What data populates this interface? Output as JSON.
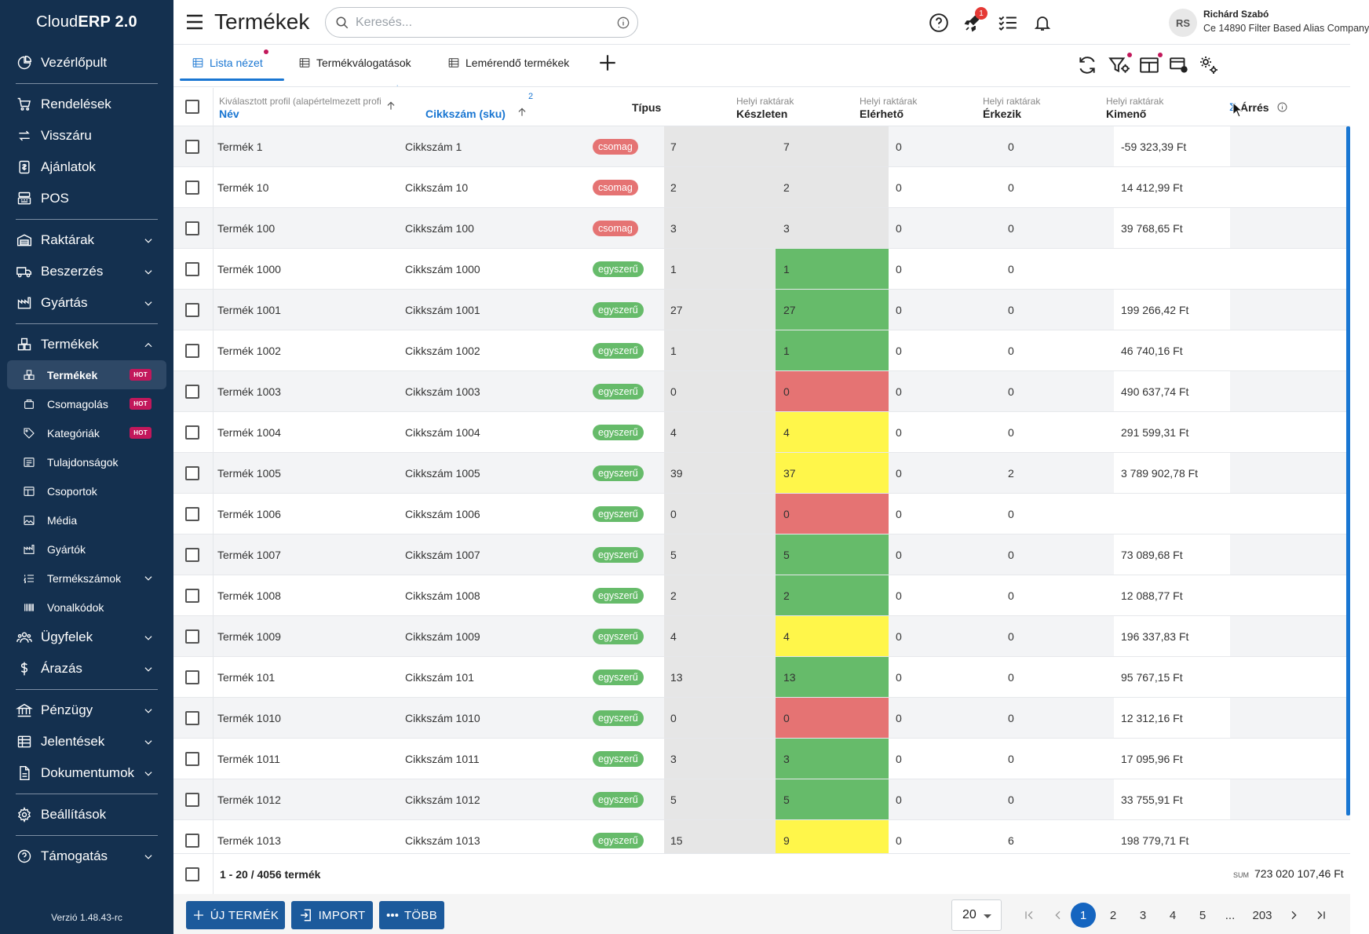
{
  "app": {
    "logo_light": "Cloud",
    "logo_bold": "ERP 2.0",
    "version": "Verzió 1.48.43-rc"
  },
  "sidebar": {
    "dashboard": "Vezérlőpult",
    "orders": "Rendelések",
    "returns": "Visszáru",
    "offers": "Ajánlatok",
    "pos": "POS",
    "warehouses": "Raktárak",
    "purchasing": "Beszerzés",
    "manufacturing": "Gyártás",
    "products": "Termékek",
    "products_sub": [
      {
        "label": "Termékek",
        "hot": "HOT"
      },
      {
        "label": "Csomagolás",
        "hot": "HOT"
      },
      {
        "label": "Kategóriák",
        "hot": "HOT"
      },
      {
        "label": "Tulajdonságok"
      },
      {
        "label": "Csoportok"
      },
      {
        "label": "Média"
      },
      {
        "label": "Gyártók"
      },
      {
        "label": "Termékszámok"
      },
      {
        "label": "Vonalkódok"
      }
    ],
    "customers": "Ügyfelek",
    "pricing": "Árazás",
    "finance": "Pénzügy",
    "reports": "Jelentések",
    "documents": "Dokumentumok",
    "settings": "Beállítások",
    "support": "Támogatás"
  },
  "topbar": {
    "title": "Termékek",
    "search_placeholder": "Keresés...",
    "rocket_badge": "1",
    "user_initials": "RS",
    "user_name": "Richárd Szabó",
    "user_company": "Ce 14890 Filter Based Alias Company"
  },
  "tabs": [
    {
      "label": "Lista nézet"
    },
    {
      "label": "Termékválogatások"
    },
    {
      "label": "Lemérendő termékek"
    }
  ],
  "table": {
    "headers": {
      "name_sub": "Kiválasztott profil (alapértelmezett profi",
      "name_sort_mark": "˙",
      "name": "Név",
      "sku": "Cikkszám (sku)",
      "sku_sort_index": "2",
      "type": "Típus",
      "instock_sub": "Helyi raktárak",
      "instock": "Készleten",
      "available_sub": "Helyi raktárak",
      "available": "Elérhető",
      "incoming_sub": "Helyi raktárak",
      "incoming": "Érkezik",
      "outgoing_sub": "Helyi raktárak",
      "outgoing": "Kimenő",
      "margin_sigma": "Σ",
      "margin": "Árrés"
    },
    "rows": [
      {
        "name": "Termék 1",
        "sku": "Cikkszám 1",
        "type": "csomag",
        "instock": "7",
        "available": "7",
        "incoming": "0",
        "outgoing": "0",
        "margin": "-59 323,39 Ft"
      },
      {
        "name": "Termék 10",
        "sku": "Cikkszám 10",
        "type": "csomag",
        "instock": "2",
        "available": "2",
        "incoming": "0",
        "outgoing": "0",
        "margin": "14 412,99 Ft"
      },
      {
        "name": "Termék 100",
        "sku": "Cikkszám 100",
        "type": "csomag",
        "instock": "3",
        "available": "3",
        "incoming": "0",
        "outgoing": "0",
        "margin": "39 768,65 Ft"
      },
      {
        "name": "Termék 1000",
        "sku": "Cikkszám 1000",
        "type": "egyszerű",
        "instock": "1",
        "available": "1",
        "incoming": "0",
        "outgoing": "0",
        "margin": "",
        "status": "green"
      },
      {
        "name": "Termék 1001",
        "sku": "Cikkszám 1001",
        "type": "egyszerű",
        "instock": "27",
        "available": "27",
        "incoming": "0",
        "outgoing": "0",
        "margin": "199 266,42 Ft",
        "status": "green"
      },
      {
        "name": "Termék 1002",
        "sku": "Cikkszám 1002",
        "type": "egyszerű",
        "instock": "1",
        "available": "1",
        "incoming": "0",
        "outgoing": "0",
        "margin": "46 740,16 Ft",
        "status": "green"
      },
      {
        "name": "Termék 1003",
        "sku": "Cikkszám 1003",
        "type": "egyszerű",
        "instock": "0",
        "available": "0",
        "incoming": "0",
        "outgoing": "0",
        "margin": "490 637,74 Ft",
        "status": "red"
      },
      {
        "name": "Termék 1004",
        "sku": "Cikkszám 1004",
        "type": "egyszerű",
        "instock": "4",
        "available": "4",
        "incoming": "0",
        "outgoing": "0",
        "margin": "291 599,31 Ft",
        "status": "yellow"
      },
      {
        "name": "Termék 1005",
        "sku": "Cikkszám 1005",
        "type": "egyszerű",
        "instock": "39",
        "available": "37",
        "incoming": "0",
        "outgoing": "2",
        "margin": "3 789 902,78 Ft",
        "status": "yellow"
      },
      {
        "name": "Termék 1006",
        "sku": "Cikkszám 1006",
        "type": "egyszerű",
        "instock": "0",
        "available": "0",
        "incoming": "0",
        "outgoing": "0",
        "margin": "",
        "status": "red"
      },
      {
        "name": "Termék 1007",
        "sku": "Cikkszám 1007",
        "type": "egyszerű",
        "instock": "5",
        "available": "5",
        "incoming": "0",
        "outgoing": "0",
        "margin": "73 089,68 Ft",
        "status": "green"
      },
      {
        "name": "Termék 1008",
        "sku": "Cikkszám 1008",
        "type": "egyszerű",
        "instock": "2",
        "available": "2",
        "incoming": "0",
        "outgoing": "0",
        "margin": "12 088,77 Ft",
        "status": "green"
      },
      {
        "name": "Termék 1009",
        "sku": "Cikkszám 1009",
        "type": "egyszerű",
        "instock": "4",
        "available": "4",
        "incoming": "0",
        "outgoing": "0",
        "margin": "196 337,83 Ft",
        "status": "yellow"
      },
      {
        "name": "Termék 101",
        "sku": "Cikkszám 101",
        "type": "egyszerű",
        "instock": "13",
        "available": "13",
        "incoming": "0",
        "outgoing": "0",
        "margin": "95 767,15 Ft",
        "status": "green"
      },
      {
        "name": "Termék 1010",
        "sku": "Cikkszám 1010",
        "type": "egyszerű",
        "instock": "0",
        "available": "0",
        "incoming": "0",
        "outgoing": "0",
        "margin": "12 312,16 Ft",
        "status": "red"
      },
      {
        "name": "Termék 1011",
        "sku": "Cikkszám 1011",
        "type": "egyszerű",
        "instock": "3",
        "available": "3",
        "incoming": "0",
        "outgoing": "0",
        "margin": "17 095,96 Ft",
        "status": "green"
      },
      {
        "name": "Termék 1012",
        "sku": "Cikkszám 1012",
        "type": "egyszerű",
        "instock": "5",
        "available": "5",
        "incoming": "0",
        "outgoing": "0",
        "margin": "33 755,91 Ft",
        "status": "green"
      },
      {
        "name": "Termék 1013",
        "sku": "Cikkszám 1013",
        "type": "egyszerű",
        "instock": "15",
        "available": "9",
        "incoming": "0",
        "outgoing": "6",
        "margin": "198 779,71 Ft",
        "status": "yellow"
      }
    ],
    "summary_range": "1 - 20 / 4056 termék",
    "sum_label": "SUM",
    "sum_value": "723 020 107,46 Ft"
  },
  "bottombar": {
    "new_product": "ÚJ TERMÉK",
    "import": "IMPORT",
    "more": "TÖBB",
    "per_page": "20",
    "pages": [
      "1",
      "2",
      "3",
      "4",
      "5",
      "...",
      "203"
    ]
  },
  "colors": {
    "sidebar_bg": "#14304f",
    "accent": "#1976d2",
    "stock_green": "#66bb6a",
    "stock_red": "#e57373",
    "stock_yellow": "#fff64a"
  }
}
